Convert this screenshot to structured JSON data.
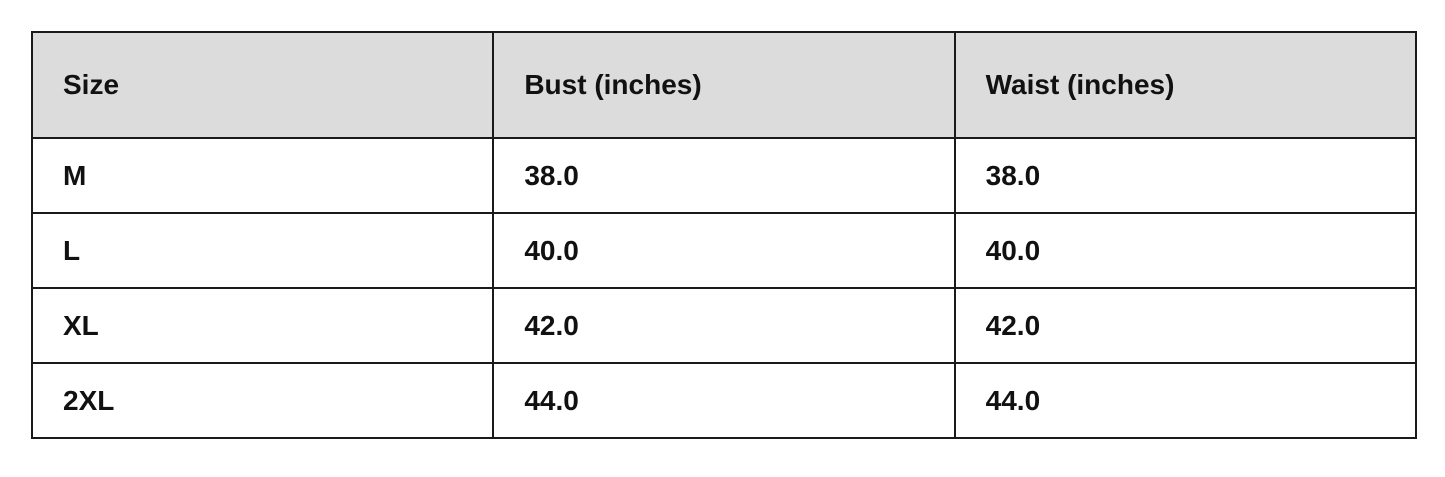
{
  "table": {
    "headers": [
      "Size",
      "Bust (inches)",
      "Waist (inches)"
    ],
    "rows": [
      [
        "M",
        "38.0",
        "38.0"
      ],
      [
        "L",
        "40.0",
        "40.0"
      ],
      [
        "XL",
        "42.0",
        "42.0"
      ],
      [
        "2XL",
        "44.0",
        "44.0"
      ]
    ]
  },
  "colors": {
    "header_bg": "#dcdcdc",
    "border": "#1a1a1a"
  }
}
